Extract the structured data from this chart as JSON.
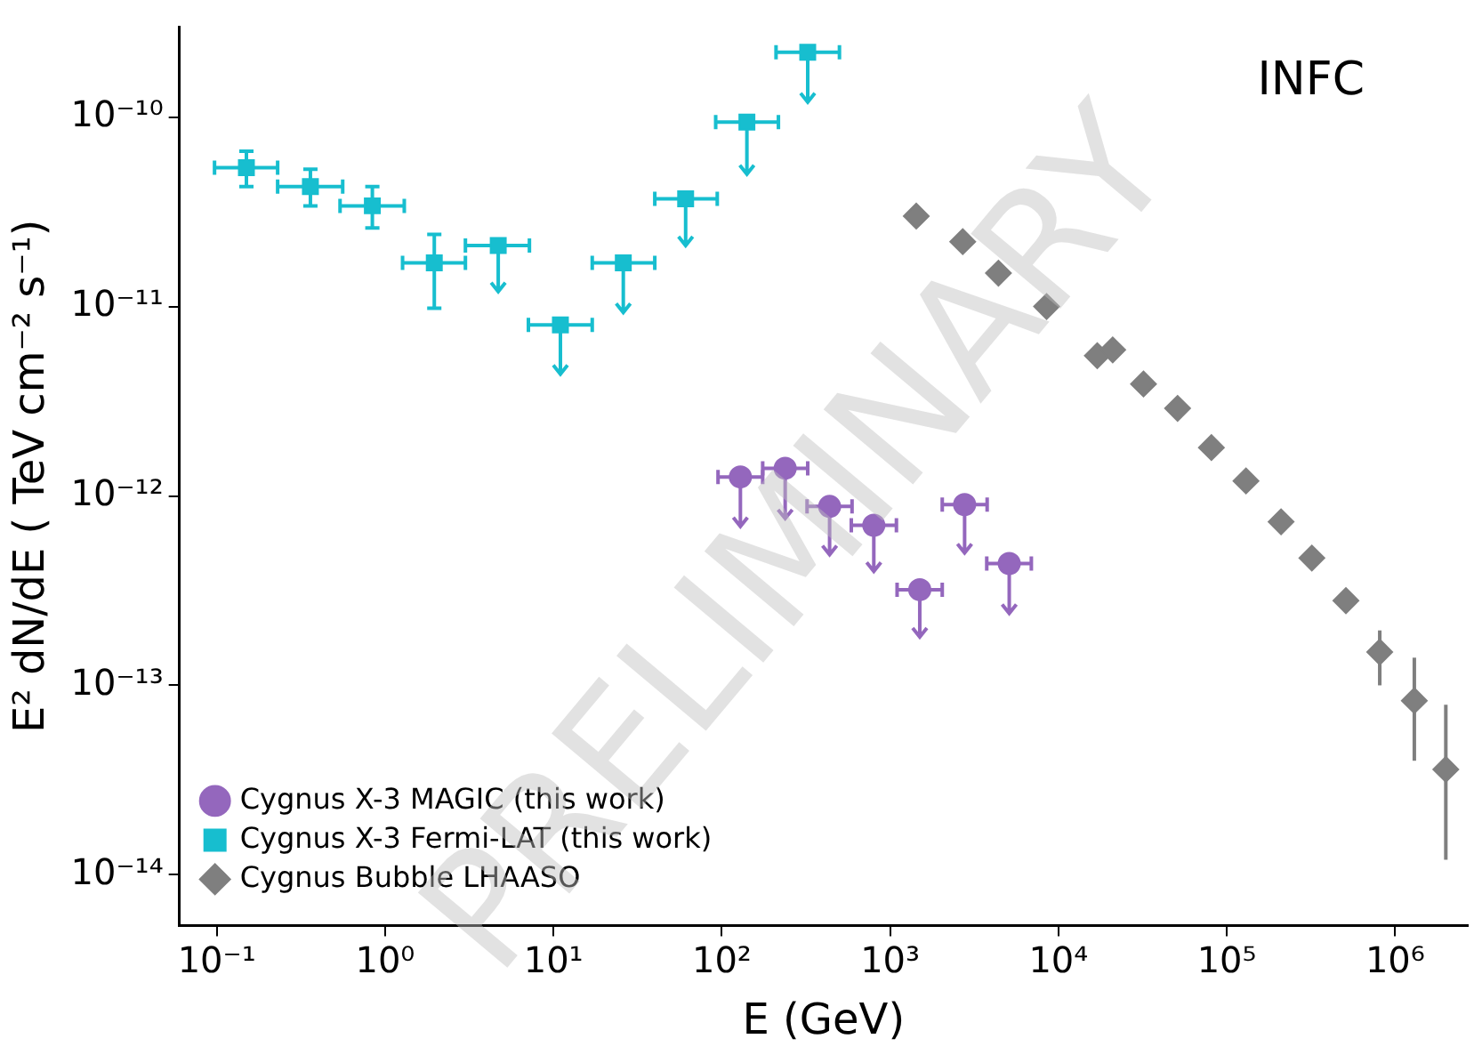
{
  "chart_data": {
    "type": "scatter",
    "xlabel": "E (GeV)",
    "ylabel": "E² dN/dE ( TeV cm⁻² s⁻¹)",
    "log": "xy",
    "xlim": [
      0.06,
      2700000
    ],
    "ylim": [
      5.4e-15,
      3e-10
    ],
    "xticks": [
      {
        "value": 0.1,
        "label": "10⁻¹"
      },
      {
        "value": 1,
        "label": "10⁰"
      },
      {
        "value": 10,
        "label": "10¹"
      },
      {
        "value": 100,
        "label": "10²"
      },
      {
        "value": 1000,
        "label": "10³"
      },
      {
        "value": 10000,
        "label": "10⁴"
      },
      {
        "value": 100000,
        "label": "10⁵"
      },
      {
        "value": 1000000,
        "label": "10⁶"
      }
    ],
    "yticks": [
      {
        "value": 1e-14,
        "label": "10⁻¹⁴"
      },
      {
        "value": 1e-13,
        "label": "10⁻¹³"
      },
      {
        "value": 1e-12,
        "label": "10⁻¹²"
      },
      {
        "value": 1e-11,
        "label": "10⁻¹¹"
      },
      {
        "value": 1e-10,
        "label": "10⁻¹⁰"
      }
    ],
    "grid": false,
    "legend": "bottom left",
    "annotations": [
      "INFC",
      "PRELIMINARY"
    ],
    "series": [
      {
        "name": "Cygnus X-3 MAGIC (this work)",
        "color": "#9467bd",
        "marker": "circle",
        "x": [
          129,
          238,
          437,
          800,
          1500,
          2770,
          5100
        ],
        "values": [
          1.26e-12,
          1.4e-12,
          8.8e-13,
          7e-13,
          3.2e-13,
          9e-13,
          4.4e-13
        ],
        "errors": [
          [
            6.9e-13,
            1.26e-12
          ],
          [
            7.6e-13,
            1.4e-12
          ],
          [
            4.9e-13,
            8.8e-13
          ],
          [
            4e-13,
            7e-13
          ],
          [
            1.8e-13,
            3.2e-13
          ],
          [
            5e-13,
            9e-13
          ],
          [
            2.4e-13,
            4.4e-13
          ]
        ],
        "xerrors": [
          [
            95,
            175
          ],
          [
            175,
            324
          ],
          [
            321,
            594
          ],
          [
            588,
            1090
          ],
          [
            1100,
            2040
          ],
          [
            2040,
            3770
          ],
          [
            3750,
            6900
          ]
        ]
      },
      {
        "name": "Cygnus X-3 Fermi-LAT (this work)",
        "color": "#17becf",
        "marker": "square",
        "x": [
          0.15,
          0.36,
          0.84,
          1.96,
          4.7,
          11,
          26,
          61,
          141,
          324
        ],
        "values": [
          5.4e-11,
          4.3e-11,
          3.4e-11,
          1.7e-11,
          2.1e-11,
          8e-12,
          1.7e-11,
          3.7e-11,
          9.4e-11,
          2.2e-10
        ],
        "errors": [
          [
            4.3e-11,
            6.6e-11
          ],
          [
            3.4e-11,
            5.3e-11
          ],
          [
            2.6e-11,
            4.3e-11
          ],
          [
            9.8e-12,
            2.4e-11
          ],
          [
            1.2e-11,
            2.1e-11
          ],
          [
            4.4e-12,
            8e-12
          ],
          [
            9.3e-12,
            1.7e-11
          ],
          [
            2.1e-11,
            3.7e-11
          ],
          [
            5e-11,
            9.4e-11
          ],
          [
            1.2e-10,
            2.2e-10
          ]
        ],
        "xerrors": [
          [
            0.097,
            0.23
          ],
          [
            0.23,
            0.56
          ],
          [
            0.54,
            1.3
          ],
          [
            1.27,
            3
          ],
          [
            3,
            7.2
          ],
          [
            7.1,
            17
          ],
          [
            17,
            40
          ],
          [
            40,
            94
          ],
          [
            92,
            217
          ],
          [
            210,
            500
          ]
        ]
      },
      {
        "name": "Cygnus Bubble LHAASO",
        "color": "#7f7f7f",
        "marker": "diamond",
        "x": [
          1430,
          2700,
          4400,
          8500,
          17000,
          21000,
          32000,
          51000,
          81000,
          130000,
          210000,
          320000,
          510000,
          810000,
          1300000,
          2000000
        ],
        "values": [
          3e-11,
          2.2e-11,
          1.5e-11,
          1e-11,
          5.5e-12,
          5.9e-12,
          3.9e-12,
          2.9e-12,
          1.8e-12,
          1.2e-12,
          7.3e-13,
          4.7e-13,
          2.8e-13,
          1.5e-13,
          8.3e-14,
          3.6e-14
        ],
        "errors": [
          null,
          null,
          null,
          null,
          null,
          null,
          null,
          null,
          null,
          null,
          null,
          null,
          [
            2.5e-13,
            3.1e-13
          ],
          [
            1e-13,
            1.95e-13
          ],
          [
            4e-14,
            1.4e-13
          ],
          [
            1.2e-14,
            7.9e-14
          ]
        ]
      }
    ]
  }
}
